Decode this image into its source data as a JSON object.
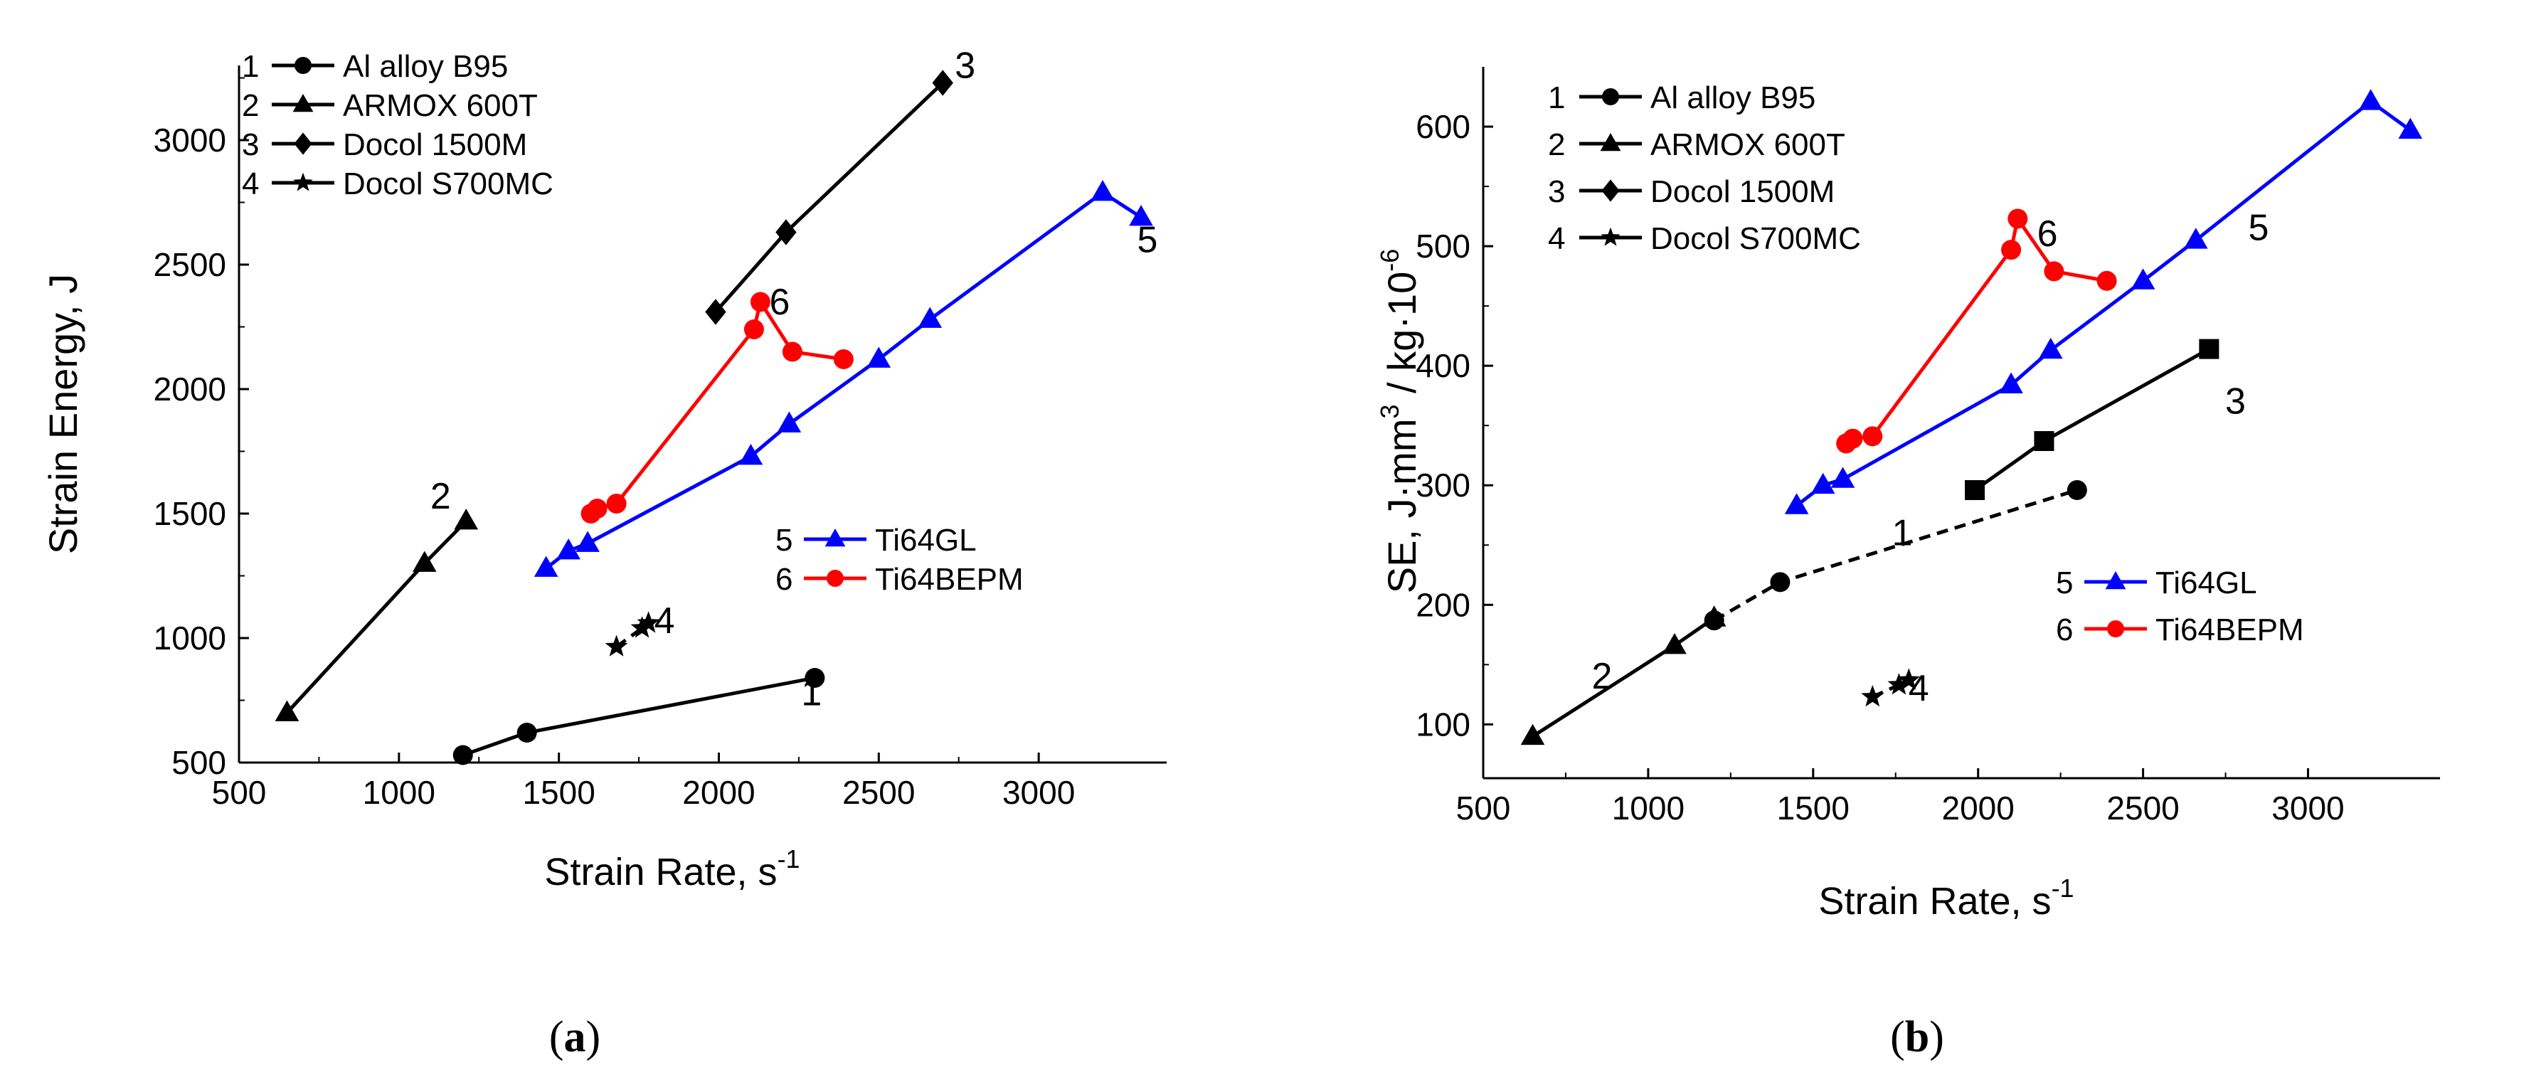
{
  "chart_data": [
    {
      "panel": "a",
      "type": "line",
      "xlabel": "Strain Rate, s",
      "xlabel_sup": "-1",
      "ylabel": "Strain Energy, J",
      "xlim": [
        500,
        3400
      ],
      "ylim": [
        500,
        3300
      ],
      "x_ticks": [
        500,
        1000,
        1500,
        2000,
        2500,
        3000
      ],
      "y_ticks": [
        500,
        1000,
        1500,
        2000,
        2500,
        3000
      ],
      "legend_top_left": [
        {
          "num": "1",
          "name": "Al alloy B95",
          "marker": "circle",
          "color": "#000000",
          "dash": false
        },
        {
          "num": "2",
          "name": "ARMOX 600T",
          "marker": "triangle",
          "color": "#000000",
          "dash": false
        },
        {
          "num": "3",
          "name": "Docol 1500M",
          "marker": "diamond",
          "color": "#000000",
          "dash": false
        },
        {
          "num": "4",
          "name": "Docol S700MC",
          "marker": "star",
          "color": "#000000",
          "dash": false
        }
      ],
      "legend_bottom_right": [
        {
          "num": "5",
          "name": "Ti64GL",
          "marker": "triangle",
          "color": "#0000ff",
          "dash": false
        },
        {
          "num": "6",
          "name": "Ti64BEPM",
          "marker": "circle",
          "color": "#ff0000",
          "dash": false
        }
      ],
      "series": [
        {
          "name": "1",
          "marker": "circle",
          "color": "#000000",
          "dash": false,
          "x": [
            1200,
            1400,
            2300
          ],
          "y": [
            530,
            620,
            840
          ]
        },
        {
          "name": "2",
          "marker": "triangle",
          "color": "#000000",
          "dash": false,
          "x": [
            650,
            1080,
            1210
          ],
          "y": [
            700,
            1300,
            1470
          ]
        },
        {
          "name": "3",
          "marker": "diamond",
          "color": "#000000",
          "dash": false,
          "x": [
            1990,
            2210,
            2700
          ],
          "y": [
            2310,
            2630,
            3230
          ]
        },
        {
          "name": "4",
          "marker": "star",
          "color": "#000000",
          "dash": true,
          "x": [
            1680,
            1760,
            1780
          ],
          "y": [
            965,
            1040,
            1060
          ]
        },
        {
          "name": "5",
          "marker": "triangle",
          "color": "#0000ff",
          "dash": false,
          "x": [
            1460,
            1530,
            1590,
            2100,
            2220,
            2500,
            2660,
            3200,
            3320
          ],
          "y": [
            1280,
            1350,
            1380,
            1730,
            1860,
            2120,
            2280,
            2790,
            2690
          ]
        },
        {
          "name": "6",
          "marker": "circle",
          "color": "#ff0000",
          "dash": false,
          "x": [
            1600,
            1620,
            1680,
            2110,
            2130,
            2230,
            2390
          ],
          "y": [
            1500,
            1520,
            1540,
            2240,
            2350,
            2150,
            2120
          ]
        }
      ],
      "annotations": [
        {
          "text": "1",
          "x": 2290,
          "y": 730
        },
        {
          "text": "2",
          "x": 1130,
          "y": 1520
        },
        {
          "text": "3",
          "x": 2770,
          "y": 3250
        },
        {
          "text": "4",
          "x": 1830,
          "y": 1020
        },
        {
          "text": "5",
          "x": 3340,
          "y": 2550
        },
        {
          "text": "6",
          "x": 2190,
          "y": 2300
        }
      ]
    },
    {
      "panel": "b",
      "type": "line",
      "xlabel": "Strain Rate, s",
      "xlabel_sup": "-1",
      "ylabel": "SE, J·mm",
      "ylabel_sup": "3",
      "ylabel_mid": " / kg·10",
      "ylabel_sup2": "-6",
      "xlim": [
        500,
        3400
      ],
      "ylim": [
        55,
        650
      ],
      "x_ticks": [
        500,
        1000,
        1500,
        2000,
        2500,
        3000
      ],
      "y_ticks": [
        100,
        200,
        300,
        400,
        500,
        600
      ],
      "legend_top_left": [
        {
          "num": "1",
          "name": "Al alloy B95",
          "marker": "circle",
          "color": "#000000",
          "dash": false
        },
        {
          "num": "2",
          "name": "ARMOX 600T",
          "marker": "triangle",
          "color": "#000000",
          "dash": false
        },
        {
          "num": "3",
          "name": "Docol 1500M",
          "marker": "diamond",
          "color": "#000000",
          "dash": false
        },
        {
          "num": "4",
          "name": "Docol S700MC",
          "marker": "star",
          "color": "#000000",
          "dash": false
        }
      ],
      "legend_bottom_right": [
        {
          "num": "5",
          "name": "Ti64GL",
          "marker": "triangle",
          "color": "#0000ff",
          "dash": false
        },
        {
          "num": "6",
          "name": "Ti64BEPM",
          "marker": "circle",
          "color": "#ff0000",
          "dash": false
        }
      ],
      "series": [
        {
          "name": "1",
          "marker": "circle",
          "color": "#000000",
          "dash": true,
          "x": [
            1200,
            1400,
            2300
          ],
          "y": [
            187,
            219,
            296
          ]
        },
        {
          "name": "2",
          "marker": "triangle",
          "color": "#000000",
          "dash": false,
          "x": [
            650,
            1080,
            1200
          ],
          "y": [
            90,
            166,
            189
          ]
        },
        {
          "name": "3",
          "marker": "square",
          "color": "#000000",
          "dash": false,
          "x": [
            1990,
            2200,
            2700
          ],
          "y": [
            296,
            337,
            414
          ]
        },
        {
          "name": "4",
          "marker": "star",
          "color": "#000000",
          "dash": true,
          "x": [
            1680,
            1760,
            1790
          ],
          "y": [
            123,
            133,
            137
          ]
        },
        {
          "name": "5",
          "marker": "triangle",
          "color": "#0000ff",
          "dash": false,
          "x": [
            1450,
            1530,
            1590,
            2100,
            2220,
            2500,
            2660,
            3190,
            3310
          ],
          "y": [
            283,
            300,
            305,
            384,
            413,
            471,
            505,
            621,
            597
          ]
        },
        {
          "name": "6",
          "marker": "circle",
          "color": "#ff0000",
          "dash": false,
          "x": [
            1600,
            1620,
            1680,
            2100,
            2120,
            2230,
            2390
          ],
          "y": [
            335,
            339,
            341,
            497,
            523,
            479,
            471
          ]
        }
      ],
      "annotations": [
        {
          "text": "1",
          "x": 1770,
          "y": 250
        },
        {
          "text": "2",
          "x": 860,
          "y": 130
        },
        {
          "text": "3",
          "x": 2780,
          "y": 360
        },
        {
          "text": "4",
          "x": 1820,
          "y": 120
        },
        {
          "text": "5",
          "x": 2850,
          "y": 505
        },
        {
          "text": "6",
          "x": 2210,
          "y": 500
        }
      ]
    }
  ],
  "panel_labels": [
    "a",
    "b"
  ]
}
